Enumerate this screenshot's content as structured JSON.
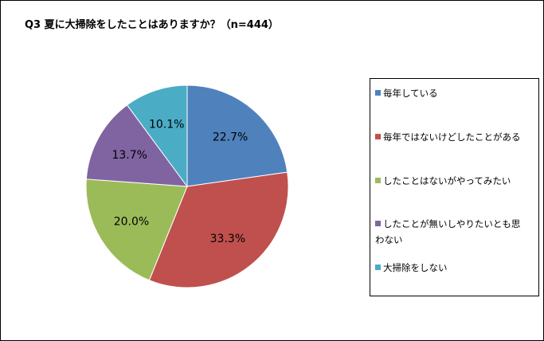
{
  "chart_data": {
    "type": "pie",
    "title": "Q3 夏に大掃除をしたことはありますか？（n=444）",
    "legend_position": "right",
    "start": "top, clockwise",
    "slices": [
      {
        "label": "毎年している",
        "value": 22.7,
        "display": "22.7%",
        "color": "#4F81BD"
      },
      {
        "label": "毎年ではないけどしたことがある",
        "value": 33.3,
        "display": "33.3%",
        "color": "#C0504D"
      },
      {
        "label": "したことはないがやってみたい",
        "value": 20.0,
        "display": "20.0%",
        "color": "#9BBB59"
      },
      {
        "label": "したことが無いしやりたいとも思わない",
        "value": 13.7,
        "display": "13.7%",
        "color": "#8064A2"
      },
      {
        "label": "大掃除をしない",
        "value": 10.1,
        "display": "10.1%",
        "color": "#4BACC6"
      }
    ]
  }
}
